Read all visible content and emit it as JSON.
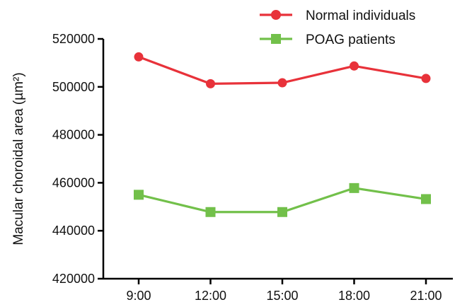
{
  "chart_data": {
    "type": "line",
    "categories": [
      "9:00",
      "12:00",
      "15:00",
      "18:00",
      "21:00"
    ],
    "ylabel": "Macular choroidal area (µm²)",
    "ylim": [
      420000,
      520000
    ],
    "yticks": [
      420000,
      440000,
      460000,
      480000,
      500000,
      520000
    ],
    "ytick_labels": [
      "420000",
      "440000",
      "460000",
      "480000",
      "500000",
      "520000"
    ],
    "legend_position": "top-right",
    "grid": false,
    "series": [
      {
        "name": "Normal individuals",
        "marker": "circle",
        "color": "#e8323a",
        "values": [
          512500,
          501300,
          501700,
          508700,
          503500
        ]
      },
      {
        "name": "POAG patients",
        "marker": "square",
        "color": "#72c04a",
        "values": [
          455000,
          447800,
          447800,
          457800,
          453200
        ]
      }
    ]
  }
}
